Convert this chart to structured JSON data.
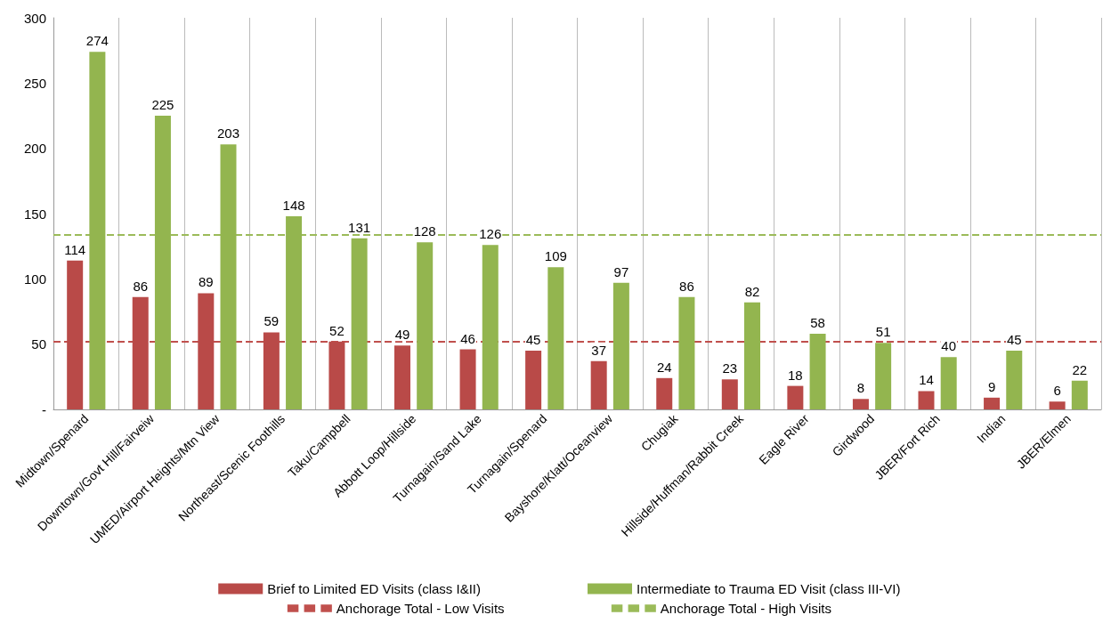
{
  "chart_data": {
    "type": "bar",
    "categories": [
      "Midtown/Spenard",
      "Downtown/Govt Hill/Fairveiw",
      "UMED/Airport Heights/Mtn View",
      "Northeast/Scenic Foothills",
      "Taku/Campbell",
      "Abbott Loop/Hillside",
      "Turnagain/Sand Lake",
      "Turnagain/Spenard",
      "Bayshore/Klatt/Oceanview",
      "Chugiak",
      "Hillside/Huffman/Rabbit Creek",
      "Eagle River",
      "Girdwood",
      "JBER/Fort Rich",
      "Indian",
      "JBER/Elmen"
    ],
    "series": [
      {
        "name": "Brief to Limited ED Visits (class I&II)",
        "color": "#b94a48",
        "values": [
          114,
          86,
          89,
          59,
          52,
          49,
          46,
          45,
          37,
          24,
          23,
          18,
          8,
          14,
          9,
          6
        ]
      },
      {
        "name": "Intermediate to Trauma ED Visit (class III-VI)",
        "color": "#93b54f",
        "values": [
          274,
          225,
          203,
          148,
          131,
          128,
          126,
          109,
          97,
          86,
          82,
          58,
          51,
          40,
          45,
          22
        ]
      }
    ],
    "ref_lines": [
      {
        "axis": "y",
        "value": 52,
        "label": "Anchorage Total - Low Visits",
        "color": "#c0504d",
        "line_style": "dashed"
      },
      {
        "axis": "y",
        "value": 134,
        "label": "Anchorage Total - High Visits",
        "color": "#9bbb59",
        "line_style": "dashed"
      }
    ],
    "ylim": [
      0,
      300
    ],
    "yticks": [
      {
        "value": 0,
        "label": "-"
      },
      50,
      100,
      150,
      200,
      250,
      300
    ],
    "grid": "x",
    "legend": "bottom",
    "data_labels": true
  }
}
